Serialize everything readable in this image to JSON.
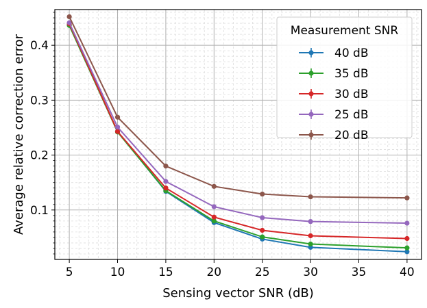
{
  "chart_data": {
    "type": "line",
    "xlabel": "Sensing vector SNR (dB)",
    "ylabel": "Average relative correction error",
    "x": [
      5,
      10,
      15,
      20,
      25,
      30,
      40
    ],
    "xlim": [
      3.5,
      41.5
    ],
    "ylim": [
      0.01,
      0.465
    ],
    "xticks": [
      5,
      10,
      15,
      20,
      25,
      30,
      35,
      40
    ],
    "xtick_labels": [
      "5",
      "10",
      "15",
      "20",
      "25",
      "30",
      "35",
      "40"
    ],
    "yticks": [
      0.1,
      0.2,
      0.3,
      0.4
    ],
    "ytick_labels": [
      "0.1",
      "0.2",
      "0.3",
      "0.4"
    ],
    "grid": true,
    "minor_grid": true,
    "legend_title": "Measurement SNR",
    "legend_position": "top-right",
    "series": [
      {
        "name": "40 dB",
        "color": "#1f77b4",
        "values": [
          0.437,
          0.243,
          0.134,
          0.077,
          0.047,
          0.032,
          0.024
        ]
      },
      {
        "name": "35 dB",
        "color": "#2ca02c",
        "values": [
          0.436,
          0.242,
          0.135,
          0.08,
          0.051,
          0.038,
          0.031
        ]
      },
      {
        "name": "30 dB",
        "color": "#d62728",
        "values": [
          0.439,
          0.243,
          0.14,
          0.087,
          0.063,
          0.053,
          0.048
        ]
      },
      {
        "name": "25 dB",
        "color": "#9467bd",
        "values": [
          0.441,
          0.251,
          0.152,
          0.106,
          0.086,
          0.079,
          0.076
        ]
      },
      {
        "name": "20 dB",
        "color": "#8c564b",
        "values": [
          0.452,
          0.269,
          0.18,
          0.143,
          0.129,
          0.124,
          0.122
        ]
      }
    ]
  }
}
